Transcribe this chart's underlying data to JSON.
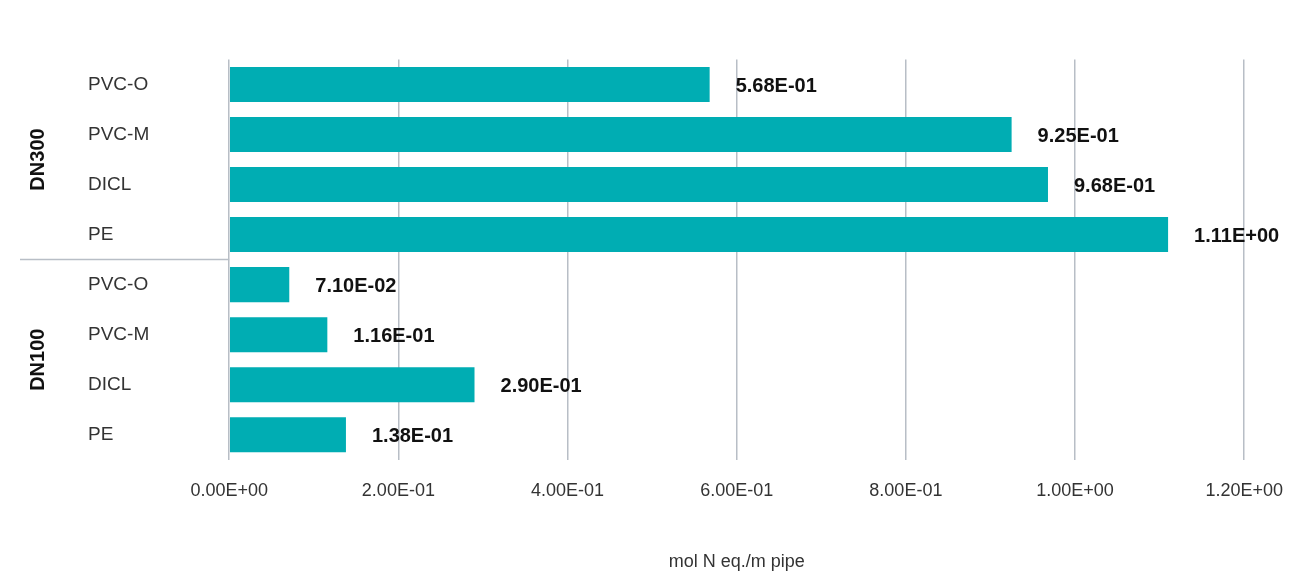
{
  "chart_data": {
    "type": "bar",
    "orientation": "horizontal",
    "xlabel": "mol N eq./m pipe",
    "categories": [
      "PVC-O",
      "PVC-M",
      "DICL",
      "PE",
      "PVC-O",
      "PVC-M",
      "DICL",
      "PE"
    ],
    "values": [
      0.568,
      0.925,
      0.968,
      1.11,
      0.071,
      0.116,
      0.29,
      0.138
    ],
    "value_labels": [
      "5.68E-01",
      "9.25E-01",
      "9.68E-01",
      "1.11E+00",
      "7.10E-02",
      "1.16E-01",
      "2.90E-01",
      "1.38E-01"
    ],
    "color": "#00adb3",
    "xlim": [
      0,
      1.2
    ],
    "xticks": [
      {
        "value": 0,
        "label": "0.00E+00"
      },
      {
        "value": 0.2,
        "label": "2.00E-01"
      },
      {
        "value": 0.4,
        "label": "4.00E-01"
      },
      {
        "value": 0.6,
        "label": "6.00E-01"
      },
      {
        "value": 0.8,
        "label": "8.00E-01"
      },
      {
        "value": 1,
        "label": "1.00E+00"
      },
      {
        "value": 1.2,
        "label": "1.20E+00"
      }
    ],
    "grid": "x",
    "legend": false,
    "annotations": [
      "DN300",
      "DN100"
    ]
  }
}
